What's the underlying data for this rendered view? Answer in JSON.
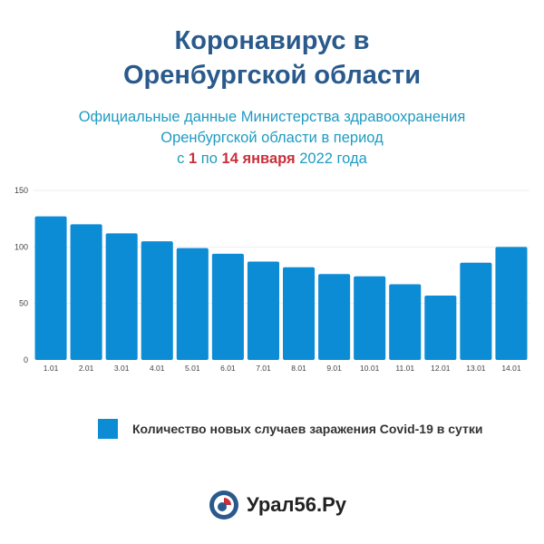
{
  "header": {
    "title_line1": "Коронавирус в",
    "title_line2": "Оренбургской области",
    "subtitle_line1": "Официальные данные Министерства здравоохранения",
    "subtitle_line2": "Оренбургской области в период",
    "subtitle_c": "с",
    "subtitle_from": "1",
    "subtitle_po": "по",
    "subtitle_to": "14 января",
    "subtitle_year": "2022 года"
  },
  "chart_data": {
    "type": "bar",
    "categories": [
      "1.01",
      "2.01",
      "3.01",
      "4.01",
      "5.01",
      "6.01",
      "7.01",
      "8.01",
      "9.01",
      "10.01",
      "11.01",
      "12.01",
      "13.01",
      "14.01"
    ],
    "series": [
      {
        "name": "Количество новых случаев заражения Covid-19 в сутки",
        "values": [
          127,
          120,
          112,
          105,
          99,
          94,
          87,
          82,
          76,
          74,
          67,
          57,
          86,
          100
        ]
      }
    ],
    "ylim": [
      0,
      150
    ],
    "yticks": [
      0,
      50,
      100,
      150
    ],
    "grid": true,
    "legend": "bottom",
    "color": "#0d8cd6"
  },
  "logo": {
    "text": "Урал56.Ру"
  }
}
